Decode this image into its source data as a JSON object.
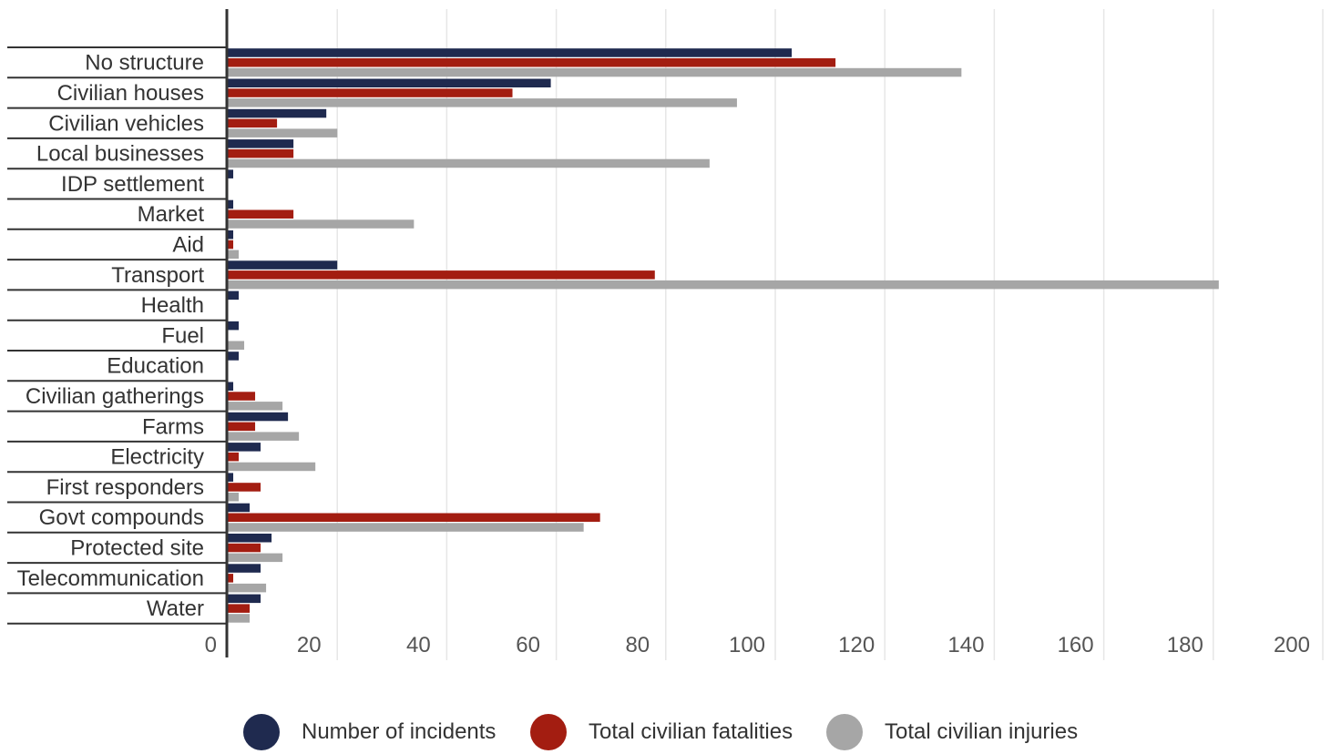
{
  "chart_data": {
    "type": "bar",
    "orientation": "horizontal",
    "categories": [
      "No structure",
      "Civilian houses",
      "Civilian vehicles",
      "Local businesses",
      "IDP settlement",
      "Market",
      "Aid",
      "Transport",
      "Health",
      "Fuel",
      "Education",
      "Civilian gatherings",
      "Farms",
      "Electricity",
      "First responders",
      "Govt compounds",
      "Protected site",
      "Telecommunication",
      "Water"
    ],
    "series": [
      {
        "name": "Number of incidents",
        "color": "#1f2a4f",
        "values": [
          103,
          59,
          18,
          12,
          1,
          1,
          1,
          20,
          2,
          2,
          2,
          1,
          11,
          6,
          1,
          4,
          8,
          6,
          6
        ]
      },
      {
        "name": "Total civilian fatalities",
        "color": "#a31d11",
        "values": [
          111,
          52,
          9,
          12,
          0,
          12,
          1,
          78,
          0,
          0,
          0,
          5,
          5,
          2,
          6,
          68,
          6,
          1,
          4
        ]
      },
      {
        "name": "Total civilian injuries",
        "color": "#a6a6a6",
        "values": [
          134,
          93,
          20,
          88,
          0,
          34,
          2,
          181,
          0,
          3,
          0,
          10,
          13,
          16,
          2,
          65,
          10,
          7,
          4
        ]
      }
    ],
    "xlim": [
      0,
      200
    ],
    "xticks": [
      "0",
      "20",
      "40",
      "60",
      "80",
      "100",
      "120",
      "140",
      "160",
      "180",
      "200"
    ],
    "grid": true,
    "legend_position": "bottom"
  }
}
